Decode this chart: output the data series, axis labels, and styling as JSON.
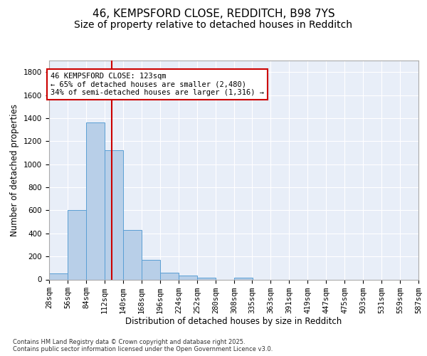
{
  "title_line1": "46, KEMPSFORD CLOSE, REDDITCH, B98 7YS",
  "title_line2": "Size of property relative to detached houses in Redditch",
  "xlabel": "Distribution of detached houses by size in Redditch",
  "ylabel": "Number of detached properties",
  "bin_edges": [
    28,
    56,
    84,
    112,
    140,
    168,
    196,
    224,
    252,
    280,
    308,
    335,
    363,
    391,
    419,
    447,
    475,
    503,
    531,
    559,
    587
  ],
  "bin_labels": [
    "28sqm",
    "56sqm",
    "84sqm",
    "112sqm",
    "140sqm",
    "168sqm",
    "196sqm",
    "224sqm",
    "252sqm",
    "280sqm",
    "308sqm",
    "335sqm",
    "363sqm",
    "391sqm",
    "419sqm",
    "447sqm",
    "475sqm",
    "503sqm",
    "531sqm",
    "559sqm",
    "587sqm"
  ],
  "counts": [
    50,
    605,
    1365,
    1120,
    430,
    170,
    60,
    35,
    15,
    0,
    15,
    0,
    0,
    0,
    0,
    0,
    0,
    0,
    0,
    0
  ],
  "bar_color": "#b8cfe8",
  "bar_edge_color": "#5a9fd4",
  "vline_x": 123,
  "vline_color": "#cc0000",
  "annotation_text": "46 KEMPSFORD CLOSE: 123sqm\n← 65% of detached houses are smaller (2,480)\n34% of semi-detached houses are larger (1,316) →",
  "annotation_box_color": "#ffffff",
  "annotation_box_edge": "#cc0000",
  "ylim": [
    0,
    1900
  ],
  "yticks": [
    0,
    200,
    400,
    600,
    800,
    1000,
    1200,
    1400,
    1600,
    1800
  ],
  "background_color": "#e8eef8",
  "grid_color": "#ffffff",
  "footer_text": "Contains HM Land Registry data © Crown copyright and database right 2025.\nContains public sector information licensed under the Open Government Licence v3.0.",
  "title_fontsize": 11,
  "subtitle_fontsize": 10,
  "label_fontsize": 8.5,
  "tick_fontsize": 7.5,
  "annotation_fontsize": 7.5
}
